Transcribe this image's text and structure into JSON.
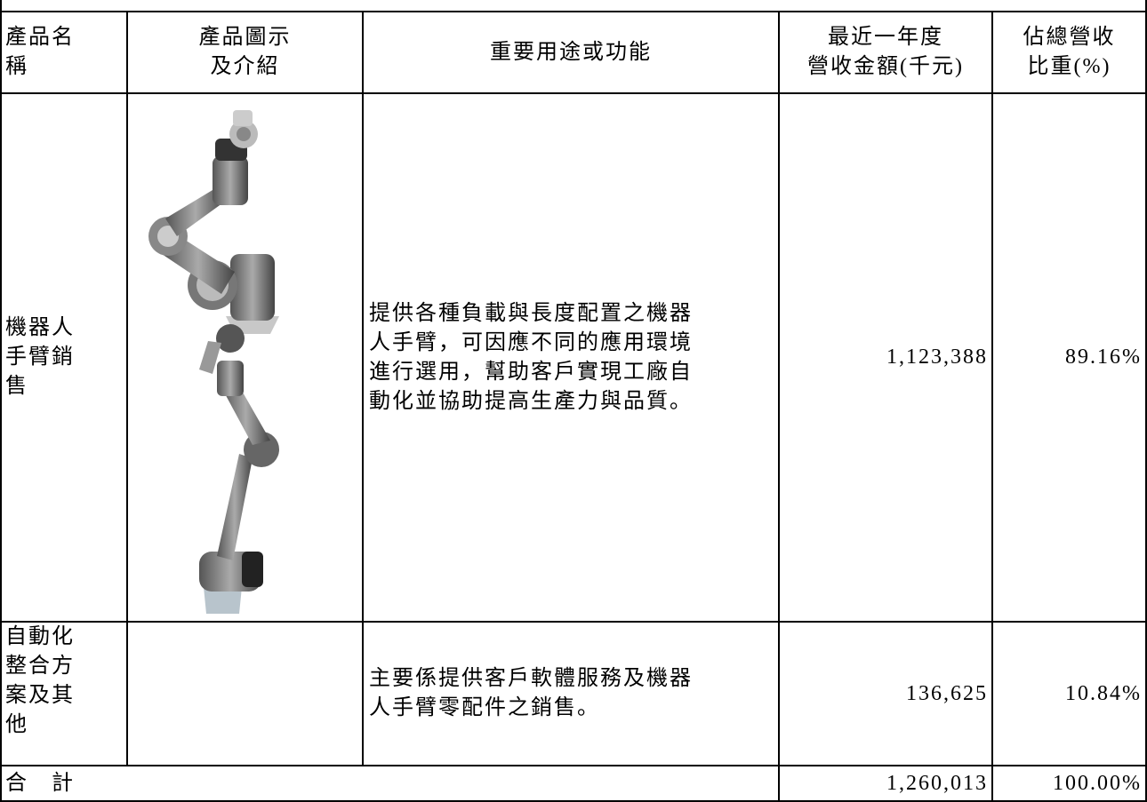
{
  "table": {
    "header": [
      [
        "產品名",
        "稱"
      ],
      [
        "產品圖示",
        "及介紹"
      ],
      [
        "重要用途或功能"
      ],
      [
        "最近一年度",
        "營收金額(千元)"
      ],
      [
        "佔總營收",
        "比重(%)"
      ]
    ],
    "rows": [
      {
        "name": [
          "機器人",
          "手臂銷",
          "售"
        ],
        "desc": [
          "提供各種負載與長度配置之機器",
          "人手臂，可因應不同的應用環境",
          "進行選用，幫助客戶實現工廠自",
          "動化並協助提高生產力與品質。"
        ],
        "revenue": "1,123,388",
        "share": "89.16%"
      },
      {
        "name": [
          "自動化",
          "整合方",
          "案及其",
          "他"
        ],
        "desc": [
          "主要係提供客戶軟體服務及機器",
          "人手臂零配件之銷售。"
        ],
        "revenue": "136,625",
        "share": "10.84%"
      }
    ],
    "total": {
      "label": "合　計",
      "revenue": "1,260,013",
      "share": "100.00%"
    }
  }
}
